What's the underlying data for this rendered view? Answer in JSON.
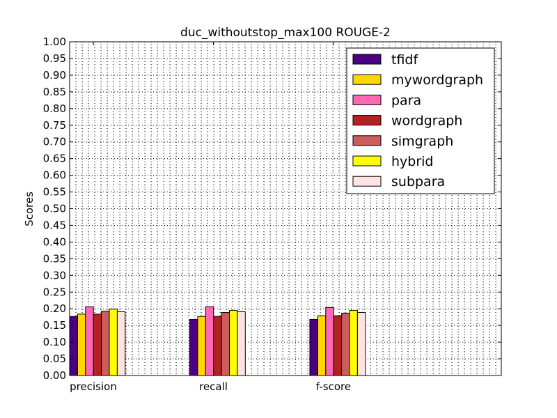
{
  "chart_data": {
    "type": "bar",
    "title": "duc_withoutstop_max100 ROUGE-2",
    "xlabel": "",
    "ylabel": "Scores",
    "ylim": [
      0,
      1.0
    ],
    "yticks": [
      "0.00",
      "0.05",
      "0.10",
      "0.15",
      "0.20",
      "0.25",
      "0.30",
      "0.35",
      "0.40",
      "0.45",
      "0.50",
      "0.55",
      "0.60",
      "0.65",
      "0.70",
      "0.75",
      "0.80",
      "0.85",
      "0.90",
      "0.95",
      "1.00"
    ],
    "categories": [
      "precision",
      "recall",
      "f-score"
    ],
    "grid": true,
    "legend_position": "top-right",
    "series": [
      {
        "name": "tfidf",
        "color": "#4b0082",
        "values": [
          0.177,
          0.168,
          0.168
        ]
      },
      {
        "name": "mywordgraph",
        "color": "#ffd700",
        "values": [
          0.184,
          0.177,
          0.179
        ]
      },
      {
        "name": "para",
        "color": "#ff69b4",
        "values": [
          0.206,
          0.206,
          0.204
        ]
      },
      {
        "name": "wordgraph",
        "color": "#b22222",
        "values": [
          0.184,
          0.177,
          0.179
        ]
      },
      {
        "name": "simgraph",
        "color": "#cd5c5c",
        "values": [
          0.193,
          0.189,
          0.187
        ]
      },
      {
        "name": "hybrid",
        "color": "#ffff00",
        "values": [
          0.199,
          0.195,
          0.195
        ]
      },
      {
        "name": "subpara",
        "color": "#ffe4e1",
        "values": [
          0.191,
          0.191,
          0.189
        ]
      }
    ]
  }
}
